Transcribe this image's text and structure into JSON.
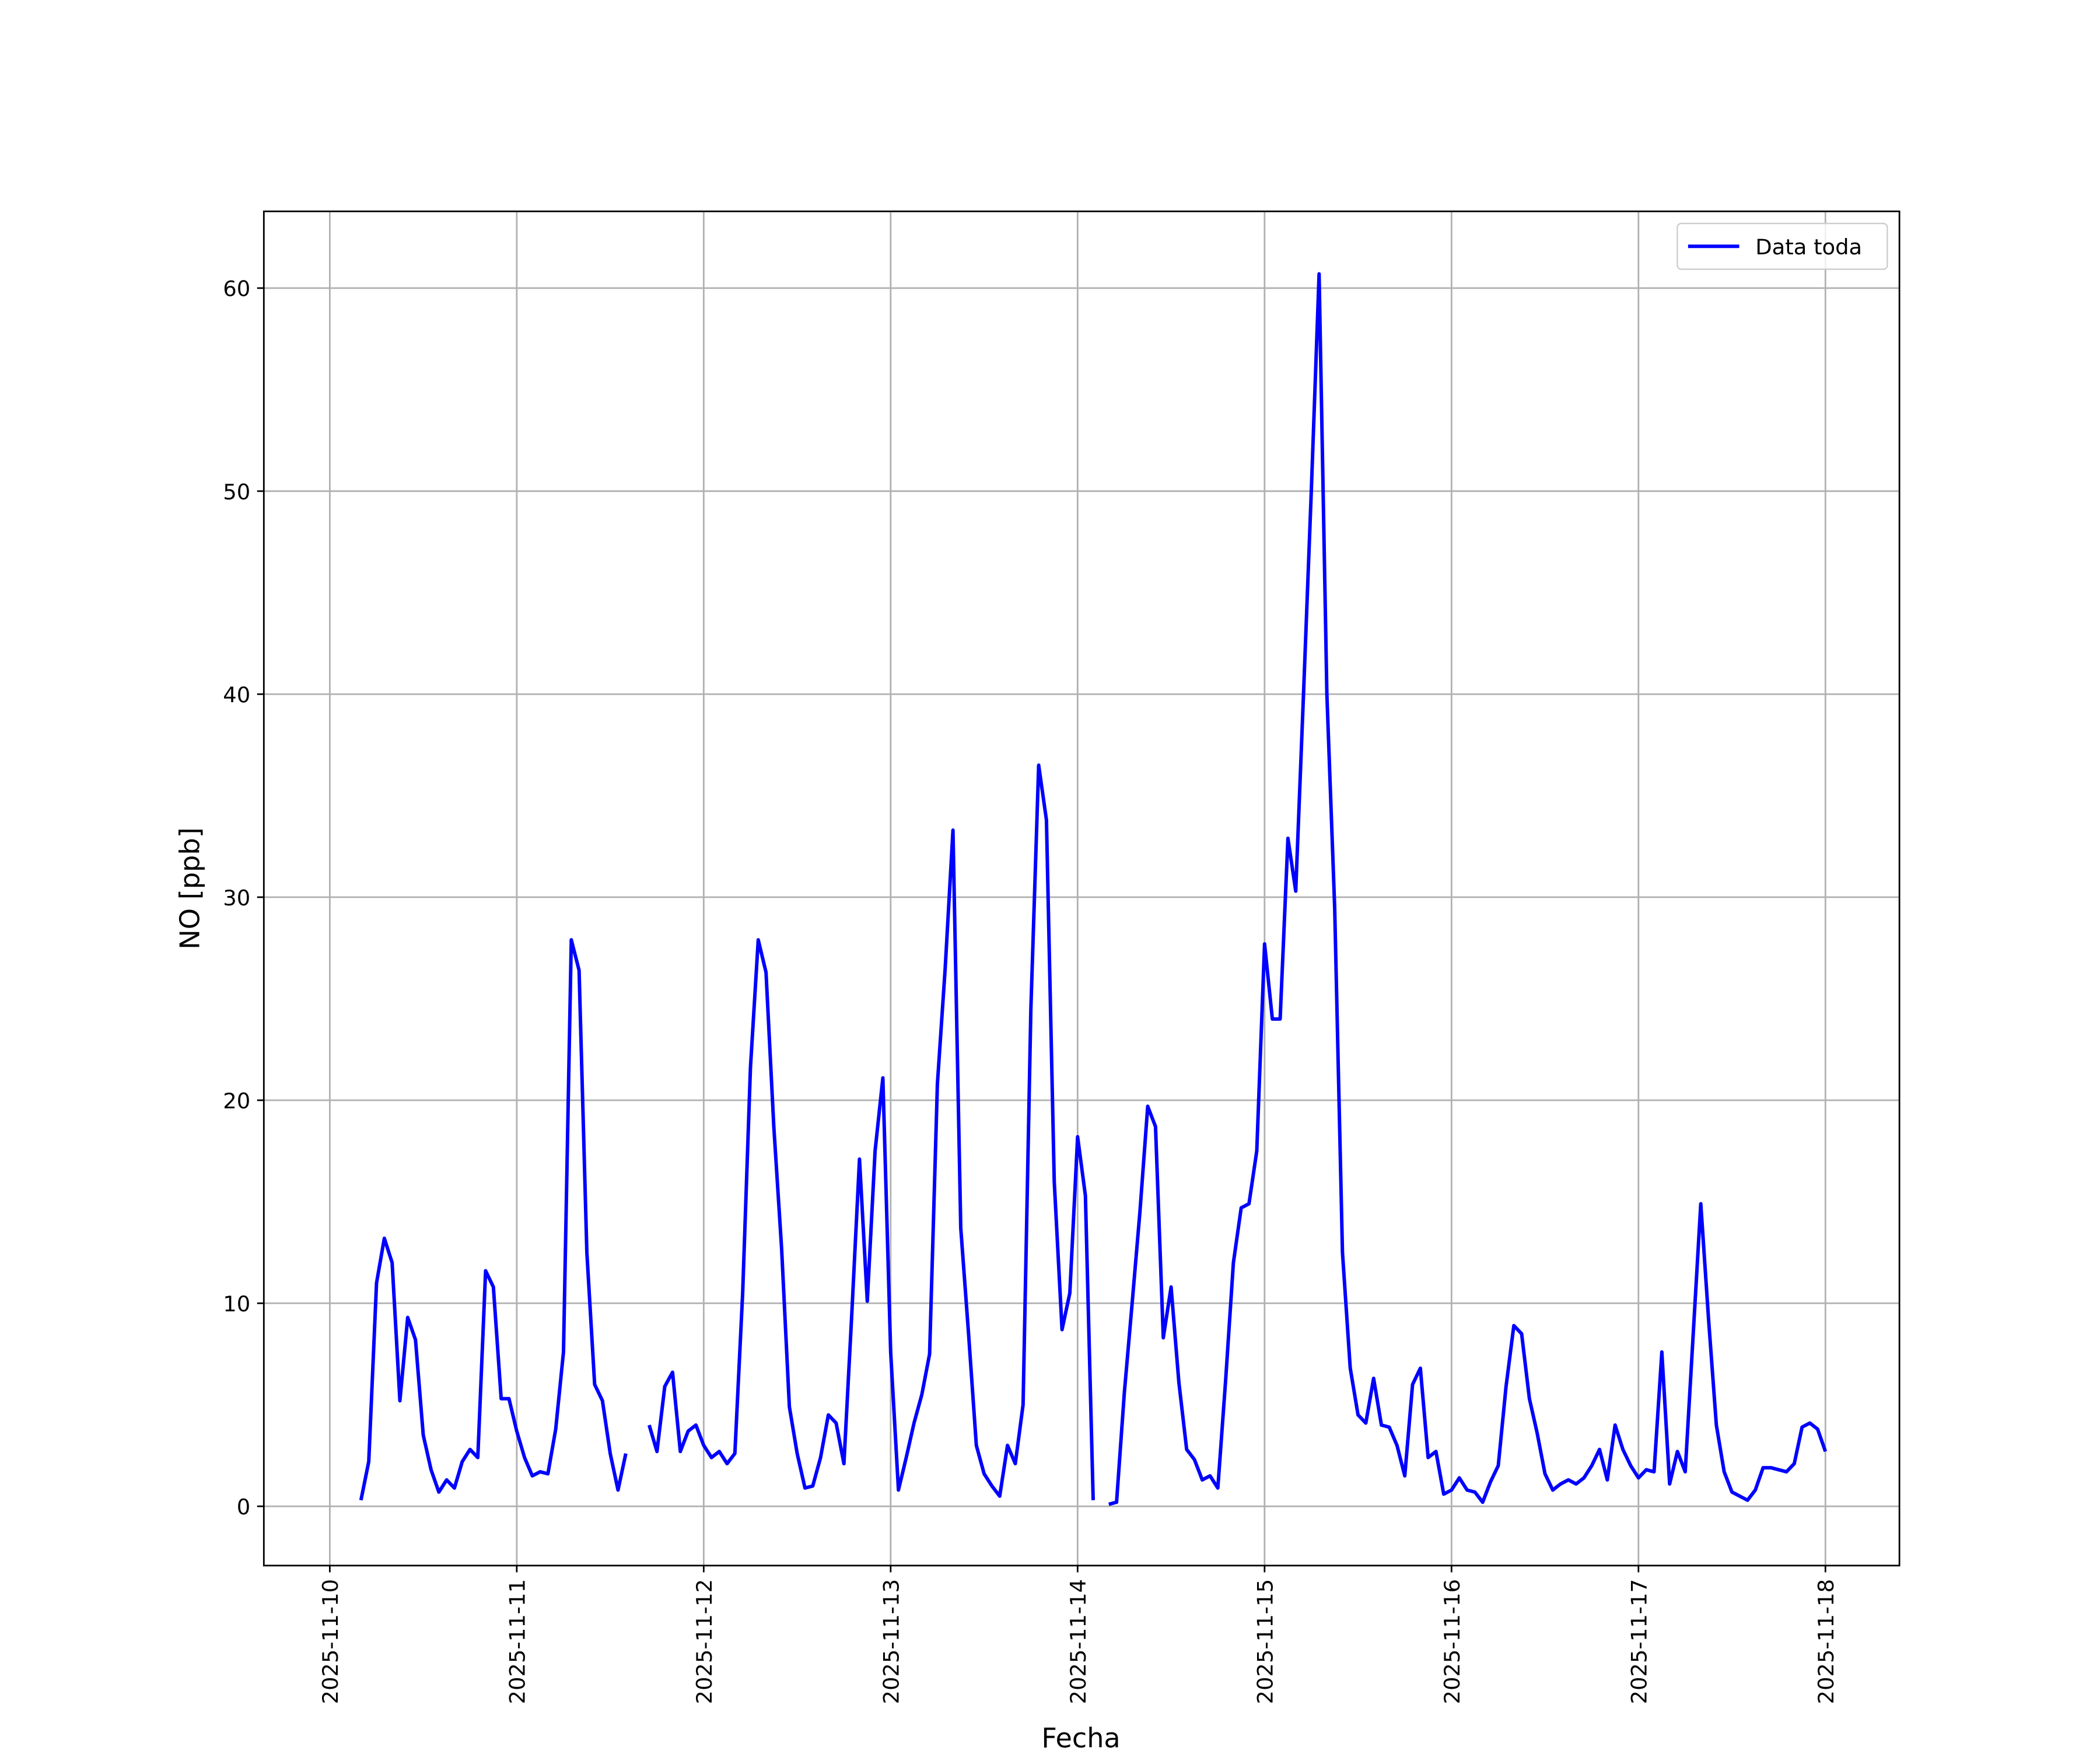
{
  "chart_data": {
    "type": "line",
    "x_label": "Fecha",
    "y_label": "NO [ppb]",
    "grid": true,
    "legend": "upper right",
    "xlim": [
      "2025-11-09 15:32",
      "2025-11-18 09:30"
    ],
    "ylim": [
      -2.92,
      63.78
    ],
    "yticks": [
      0,
      10,
      20,
      30,
      40,
      50,
      60
    ],
    "xticks": [
      "2025-11-10",
      "2025-11-11",
      "2025-11-12",
      "2025-11-13",
      "2025-11-14",
      "2025-11-15",
      "2025-11-16",
      "2025-11-17",
      "2025-11-18"
    ],
    "x": [
      "2025-11-10 04:00",
      "2025-11-10 05:00",
      "2025-11-10 06:00",
      "2025-11-10 07:00",
      "2025-11-10 08:00",
      "2025-11-10 09:00",
      "2025-11-10 10:00",
      "2025-11-10 11:00",
      "2025-11-10 12:00",
      "2025-11-10 13:00",
      "2025-11-10 14:00",
      "2025-11-10 15:00",
      "2025-11-10 16:00",
      "2025-11-10 17:00",
      "2025-11-10 18:00",
      "2025-11-10 19:00",
      "2025-11-10 20:00",
      "2025-11-10 21:00",
      "2025-11-10 22:00",
      "2025-11-10 23:00",
      "2025-11-11 00:00",
      "2025-11-11 01:00",
      "2025-11-11 02:00",
      "2025-11-11 03:00",
      "2025-11-11 04:00",
      "2025-11-11 05:00",
      "2025-11-11 06:00",
      "2025-11-11 07:00",
      "2025-11-11 08:00",
      "2025-11-11 09:00",
      "2025-11-11 10:00",
      "2025-11-11 11:00",
      "2025-11-11 12:00",
      "2025-11-11 13:00",
      "2025-11-11 14:00",
      "2025-11-11 15:00",
      "2025-11-11 16:00",
      "2025-11-11 17:00",
      "2025-11-11 18:00",
      "2025-11-11 19:00",
      "2025-11-11 20:00",
      "2025-11-11 21:00",
      "2025-11-11 22:00",
      "2025-11-11 23:00",
      "2025-11-12 00:00",
      "2025-11-12 01:00",
      "2025-11-12 02:00",
      "2025-11-12 03:00",
      "2025-11-12 04:00",
      "2025-11-12 05:00",
      "2025-11-12 06:00",
      "2025-11-12 07:00",
      "2025-11-12 08:00",
      "2025-11-12 09:00",
      "2025-11-12 10:00",
      "2025-11-12 11:00",
      "2025-11-12 12:00",
      "2025-11-12 13:00",
      "2025-11-12 14:00",
      "2025-11-12 15:00",
      "2025-11-12 16:00",
      "2025-11-12 17:00",
      "2025-11-12 18:00",
      "2025-11-12 19:00",
      "2025-11-12 20:00",
      "2025-11-12 21:00",
      "2025-11-12 22:00",
      "2025-11-12 23:00",
      "2025-11-13 00:00",
      "2025-11-13 01:00",
      "2025-11-13 02:00",
      "2025-11-13 03:00",
      "2025-11-13 04:00",
      "2025-11-13 05:00",
      "2025-11-13 06:00",
      "2025-11-13 07:00",
      "2025-11-13 08:00",
      "2025-11-13 09:00",
      "2025-11-13 10:00",
      "2025-11-13 11:00",
      "2025-11-13 12:00",
      "2025-11-13 13:00",
      "2025-11-13 14:00",
      "2025-11-13 15:00",
      "2025-11-13 16:00",
      "2025-11-13 17:00",
      "2025-11-13 18:00",
      "2025-11-13 19:00",
      "2025-11-13 20:00",
      "2025-11-13 21:00",
      "2025-11-13 22:00",
      "2025-11-13 23:00",
      "2025-11-14 00:00",
      "2025-11-14 01:00",
      "2025-11-14 02:00",
      "2025-11-14 03:00",
      "2025-11-14 04:00",
      "2025-11-14 05:00",
      "2025-11-14 06:00",
      "2025-11-14 07:00",
      "2025-11-14 08:00",
      "2025-11-14 09:00",
      "2025-11-14 10:00",
      "2025-11-14 11:00",
      "2025-11-14 12:00",
      "2025-11-14 13:00",
      "2025-11-14 14:00",
      "2025-11-14 15:00",
      "2025-11-14 16:00",
      "2025-11-14 17:00",
      "2025-11-14 18:00",
      "2025-11-14 19:00",
      "2025-11-14 20:00",
      "2025-11-14 21:00",
      "2025-11-14 22:00",
      "2025-11-14 23:00",
      "2025-11-15 00:00",
      "2025-11-15 01:00",
      "2025-11-15 02:00",
      "2025-11-15 03:00",
      "2025-11-15 04:00",
      "2025-11-15 05:00",
      "2025-11-15 06:00",
      "2025-11-15 07:00",
      "2025-11-15 08:00",
      "2025-11-15 09:00",
      "2025-11-15 10:00",
      "2025-11-15 11:00",
      "2025-11-15 12:00",
      "2025-11-15 13:00",
      "2025-11-15 14:00",
      "2025-11-15 15:00",
      "2025-11-15 16:00",
      "2025-11-15 17:00",
      "2025-11-15 18:00",
      "2025-11-15 19:00",
      "2025-11-15 20:00",
      "2025-11-15 21:00",
      "2025-11-15 22:00",
      "2025-11-15 23:00",
      "2025-11-16 00:00",
      "2025-11-16 01:00",
      "2025-11-16 02:00",
      "2025-11-16 03:00",
      "2025-11-16 04:00",
      "2025-11-16 05:00",
      "2025-11-16 06:00",
      "2025-11-16 07:00",
      "2025-11-16 08:00",
      "2025-11-16 09:00",
      "2025-11-16 10:00",
      "2025-11-16 11:00",
      "2025-11-16 12:00",
      "2025-11-16 13:00",
      "2025-11-16 14:00",
      "2025-11-16 15:00",
      "2025-11-16 16:00",
      "2025-11-16 17:00",
      "2025-11-16 18:00",
      "2025-11-16 19:00",
      "2025-11-16 20:00",
      "2025-11-16 21:00",
      "2025-11-16 22:00",
      "2025-11-16 23:00",
      "2025-11-17 00:00",
      "2025-11-17 01:00",
      "2025-11-17 02:00",
      "2025-11-17 03:00",
      "2025-11-17 04:00",
      "2025-11-17 05:00",
      "2025-11-17 06:00",
      "2025-11-17 07:00",
      "2025-11-17 08:00",
      "2025-11-17 09:00",
      "2025-11-17 10:00",
      "2025-11-17 11:00",
      "2025-11-17 12:00",
      "2025-11-17 13:00",
      "2025-11-17 14:00",
      "2025-11-17 15:00",
      "2025-11-17 16:00",
      "2025-11-17 17:00",
      "2025-11-17 18:00",
      "2025-11-17 19:00",
      "2025-11-17 20:00",
      "2025-11-17 21:00",
      "2025-11-17 22:00",
      "2025-11-17 23:00",
      "2025-11-18 00:00"
    ],
    "series": [
      {
        "name": "Data toda",
        "color": "#0000ff",
        "values": [
          0.3,
          2.2,
          11,
          13.2,
          12,
          5.2,
          9.3,
          8.2,
          3.5,
          1.8,
          0.7,
          1.3,
          0.9,
          2.2,
          2.8,
          2.4,
          11.6,
          10.8,
          5.3,
          5.3,
          3.7,
          2.4,
          1.5,
          1.7,
          1.6,
          3.8,
          7.6,
          27.9,
          26.4,
          12.5,
          6,
          5.2,
          2.6,
          0.8,
          2.6,
          null,
          null,
          4.0,
          2.7,
          5.9,
          6.6,
          2.7,
          3.7,
          4.0,
          3.0,
          2.4,
          2.7,
          2.1,
          2.6,
          10.5,
          21.6,
          27.9,
          26.3,
          18.7,
          12.7,
          4.9,
          2.6,
          0.9,
          1.0,
          2.4,
          4.5,
          4.1,
          2.1,
          9.4,
          17.1,
          10.1,
          17.5,
          21.1,
          7.6,
          0.8,
          2.4,
          4.1,
          5.5,
          7.5,
          20.8,
          26.5,
          33.3,
          13.7,
          8.5,
          3.0,
          1.6,
          1.0,
          0.5,
          3.0,
          2.1,
          5.0,
          24.5,
          36.5,
          33.8,
          16,
          8.7,
          10.5,
          18.2,
          15.3,
          0.3,
          null,
          0.1,
          0.2,
          5.6,
          10,
          14.5,
          19.7,
          18.7,
          8.3,
          10.8,
          6.1,
          2.8,
          2.3,
          1.3,
          1.5,
          0.9,
          6.2,
          12,
          14.7,
          14.9,
          17.5,
          27.7,
          24,
          24,
          32.9,
          30.3,
          40,
          50,
          60.7,
          40,
          29.5,
          12.5,
          6.8,
          4.5,
          4.1,
          6.3,
          4.0,
          3.9,
          3.0,
          1.5,
          6,
          6.8,
          2.4,
          2.7,
          0.6,
          0.8,
          1.4,
          0.8,
          0.7,
          0.2,
          1.2,
          2.0,
          5.9,
          8.9,
          8.5,
          5.3,
          3.6,
          1.6,
          0.8,
          1.1,
          1.3,
          1.1,
          1.4,
          2.0,
          2.8,
          1.3,
          4.0,
          2.8,
          2.0,
          1.4,
          1.8,
          1.7,
          7.6,
          1.1,
          2.7,
          1.7,
          8.3,
          14.9,
          9.2,
          4.0,
          1.7,
          0.7,
          0.5,
          0.3,
          0.8,
          1.9,
          1.9,
          1.8,
          1.7,
          2.1,
          3.9,
          4.1,
          3.8,
          2.7
        ]
      }
    ]
  }
}
